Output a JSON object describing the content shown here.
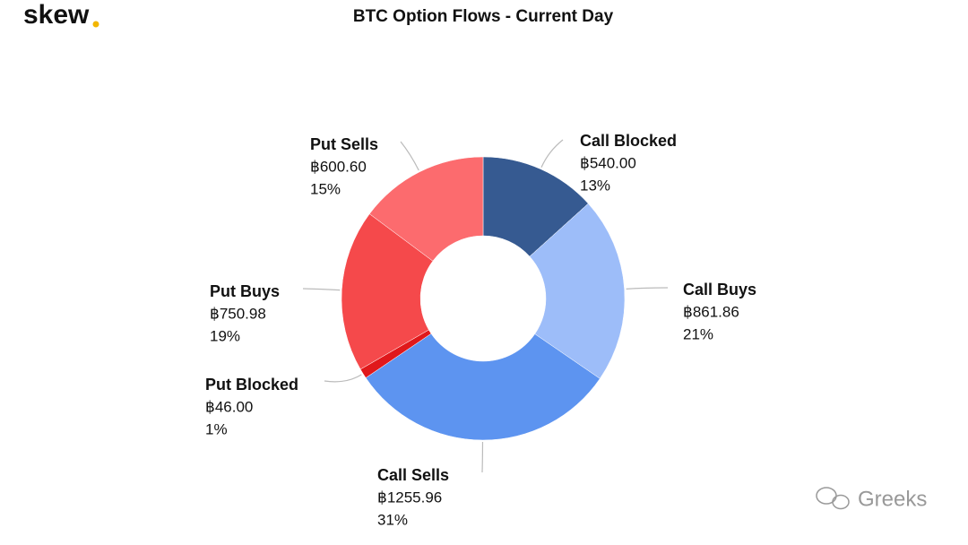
{
  "logo": "skew",
  "watermark": "Greeks",
  "chart_data": {
    "type": "donut",
    "title": "BTC Option Flows - Current Day",
    "categories": [
      "Call Blocked",
      "Call Buys",
      "Call Sells",
      "Put Blocked",
      "Put Buys",
      "Put Sells"
    ],
    "values": [
      540.0,
      861.86,
      1255.96,
      46.0,
      750.98,
      600.6
    ],
    "value_labels": [
      "฿540.00",
      "฿861.86",
      "฿1255.96",
      "฿46.00",
      "฿750.98",
      "฿600.60"
    ],
    "percent_labels": [
      "13%",
      "21%",
      "31%",
      "1%",
      "19%",
      "15%"
    ],
    "colors": [
      "#365a91",
      "#9dbdf9",
      "#5d94f0",
      "#e0181b",
      "#f5494b",
      "#fc6b6e"
    ]
  }
}
